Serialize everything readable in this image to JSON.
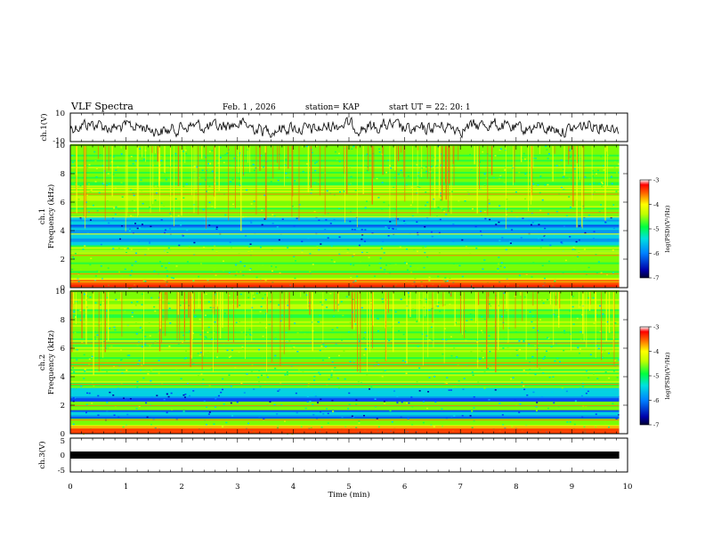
{
  "header": {
    "title": "VLF Spectra",
    "date": "Feb. 1 , 2026",
    "station": "station= KAP",
    "start": "start UT = 22: 20: 1"
  },
  "chart_data": [
    {
      "type": "line",
      "name": "ch1-waveform",
      "ylabel": "ch.1(V)",
      "ylim": [
        -10,
        10
      ],
      "yticks": [
        "10",
        "-10"
      ],
      "xlim": [
        0,
        10
      ]
    },
    {
      "type": "heatmap",
      "name": "ch1-spectrogram",
      "ylabel_line1": "ch.1",
      "ylabel_line2": "Frequency (kHz)",
      "ylim": [
        0,
        10
      ],
      "yticks": [
        "0",
        "2",
        "4",
        "6",
        "8",
        "10"
      ],
      "colorbar": {
        "range": [
          -7,
          -3
        ],
        "ticks": [
          "-3",
          "-4",
          "-5",
          "-6",
          "-7"
        ],
        "label": "log(PSD)(V²/Hz)"
      },
      "blue_band_khz": [
        [
          3.0,
          5.0
        ]
      ],
      "bright_lines_khz": [
        0.3,
        0.6,
        1.0,
        2.3,
        2.6,
        3.8,
        5.0,
        5.3,
        6.6,
        7.0
      ]
    },
    {
      "type": "heatmap",
      "name": "ch2-spectrogram",
      "ylabel_line1": "ch.2",
      "ylabel_line2": "Frequency (kHz)",
      "ylim": [
        0,
        10
      ],
      "yticks": [
        "0",
        "2",
        "4",
        "6",
        "8",
        "10"
      ],
      "colorbar": {
        "range": [
          -7,
          -3
        ],
        "ticks": [
          "-3",
          "-4",
          "-5",
          "-6",
          "-7"
        ],
        "label": "log(PSD)(V²/Hz)"
      },
      "blue_band_khz": [
        [
          2.2,
          3.2
        ],
        [
          1.0,
          1.6
        ]
      ],
      "bright_lines_khz": [
        0.3,
        0.6,
        1.0,
        2.0,
        3.5,
        4.8,
        5.0,
        6.4,
        7.6
      ]
    },
    {
      "type": "line",
      "name": "ch3-waveform",
      "ylabel": "ch.3(V)",
      "ylim": [
        -5,
        5
      ],
      "yticks": [
        "5",
        "0",
        "-5"
      ],
      "level": -0.5,
      "xlim": [
        0,
        10
      ]
    }
  ],
  "xaxis": {
    "label": "Time (min)",
    "ticks": [
      "0",
      "1",
      "2",
      "3",
      "4",
      "5",
      "6",
      "7",
      "8",
      "9",
      "10"
    ],
    "data_end_min": 9.85
  },
  "colors": {
    "low": "#0000cc",
    "mid": "#00ff00",
    "high": "#ff0000"
  }
}
